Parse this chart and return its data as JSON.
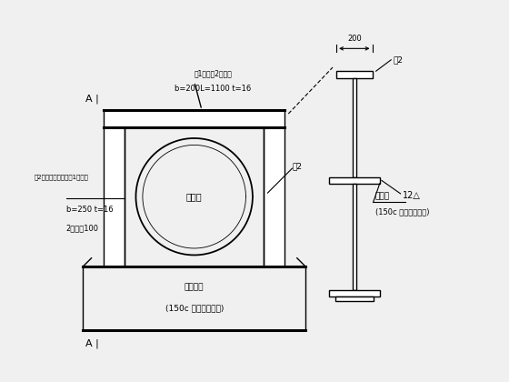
{
  "bg_color": "#f0f0f0",
  "line_color": "#000000",
  "text_color": "#000000",
  "left_diagram": {
    "label_center": "支豁管",
    "label_bottom1": "支擐型转",
    "label_bottom2": "(150c 热手刺工字型)",
    "top_label1": "板1（与板2共用）",
    "top_label2": "b=200L=1100 t=16",
    "left_label1": "板2（山型串板功能板1共用）",
    "left_label2": "b=250 t=16",
    "left_label3": "2块间距100",
    "right_label": "板2"
  },
  "right_diagram": {
    "label_top": "板2",
    "dim_200": "200",
    "label_12": "12△",
    "label_steel1": "钉剥梗",
    "label_steel2": "(150c 热手刺工字型)"
  }
}
